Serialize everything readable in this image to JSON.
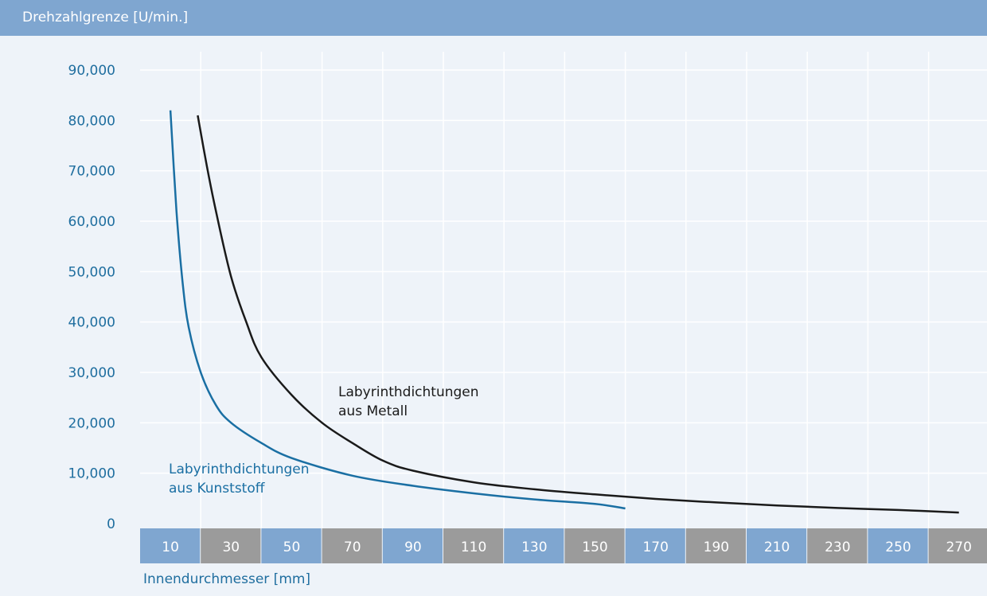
{
  "chart_data": {
    "type": "line",
    "title": "Drehzahlgrenze [U/min.]",
    "xlabel": "Innendurchmesser [mm]",
    "ylabel": "",
    "x_ticks": [
      "10",
      "30",
      "50",
      "70",
      "90",
      "110",
      "130",
      "150",
      "170",
      "190",
      "210",
      "230",
      "250",
      "270"
    ],
    "y_ticks": [
      "0",
      "10,000",
      "20,000",
      "30,000",
      "40,000",
      "50,000",
      "60,000",
      "70,000",
      "80,000",
      "90,000"
    ],
    "xlim": [
      0,
      280
    ],
    "ylim": [
      0,
      90000
    ],
    "grid": true,
    "series": [
      {
        "name": "Labyrinthdichtungen aus Kunststoff",
        "color": "#1a6fa3",
        "x": [
          10,
          12,
          14,
          16,
          20,
          25,
          30,
          40,
          50,
          70,
          90,
          110,
          130,
          150,
          160
        ],
        "y": [
          82000,
          62000,
          48000,
          39000,
          30000,
          23500,
          20000,
          16000,
          13000,
          9500,
          7500,
          6000,
          4800,
          3900,
          3000
        ]
      },
      {
        "name": "Labyrinthdichtungen aus Metall",
        "color": "#1a1a1a",
        "x": [
          19,
          22,
          25,
          30,
          35,
          40,
          50,
          60,
          70,
          80,
          90,
          110,
          130,
          150,
          170,
          190,
          210,
          230,
          250,
          270
        ],
        "y": [
          81000,
          71000,
          62000,
          49000,
          40000,
          33000,
          25500,
          20000,
          16000,
          12500,
          10500,
          8200,
          6800,
          5800,
          4900,
          4200,
          3600,
          3100,
          2700,
          2200
        ]
      }
    ],
    "annotations": [
      {
        "series": 0,
        "lines": [
          "Labyrinthdichtungen",
          "aus Kunststoff"
        ],
        "color": "#1a6fa3"
      },
      {
        "series": 1,
        "lines": [
          "Labyrinthdichtungen",
          "aus Metall"
        ],
        "color": "#1a1a1a"
      }
    ],
    "colors": {
      "header": "#7fa6d0",
      "tick_blue": "#7fa6d0",
      "tick_gray": "#9b9b9b",
      "y_tick_text": "#1f6e9f",
      "grid": "#ffffff"
    }
  }
}
